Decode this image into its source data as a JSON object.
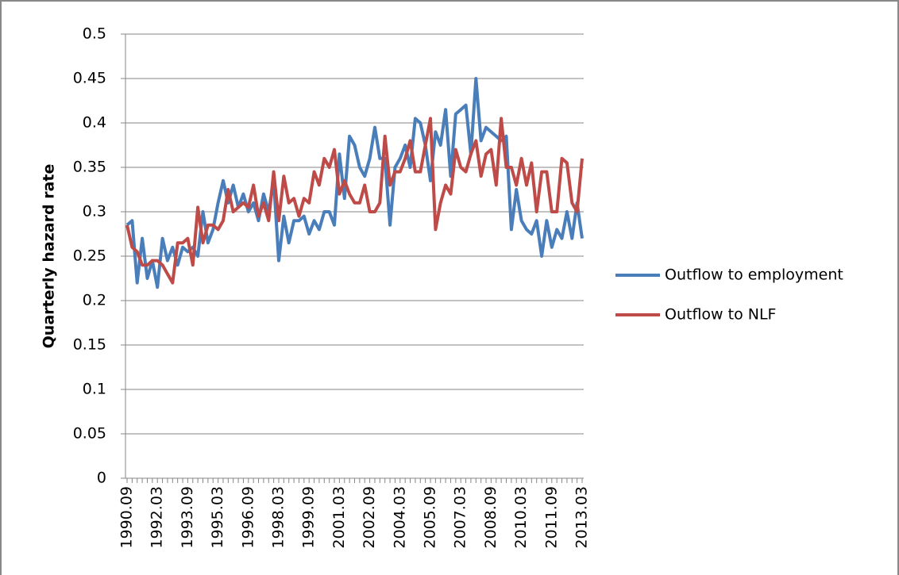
{
  "chart_data": {
    "type": "line",
    "y_label": "Quarterly hazard rate",
    "categories": [
      "1990.09",
      null,
      null,
      null,
      null,
      null,
      "1992.03",
      null,
      null,
      null,
      null,
      null,
      "1993.09",
      null,
      null,
      null,
      null,
      null,
      "1995.03",
      null,
      null,
      null,
      null,
      null,
      "1996.09",
      null,
      null,
      null,
      null,
      null,
      "1998.03",
      null,
      null,
      null,
      null,
      null,
      "1999.09",
      null,
      null,
      null,
      null,
      null,
      "2001.03",
      null,
      null,
      null,
      null,
      null,
      "2002.09",
      null,
      null,
      null,
      null,
      null,
      "2004.03",
      null,
      null,
      null,
      null,
      null,
      "2005.09",
      null,
      null,
      null,
      null,
      null,
      "2007.03",
      null,
      null,
      null,
      null,
      null,
      "2008.09",
      null,
      null,
      null,
      null,
      null,
      "2010.03",
      null,
      null,
      null,
      null,
      null,
      "2011.09",
      null,
      null,
      null,
      null,
      null,
      "2013.03"
    ],
    "series": [
      {
        "name": "Outflow to employment",
        "color": "#4a7ebb",
        "values": [
          0.285,
          0.29,
          0.22,
          0.27,
          0.225,
          0.245,
          0.215,
          0.27,
          0.245,
          0.26,
          0.24,
          0.26,
          0.255,
          0.26,
          0.25,
          0.3,
          0.265,
          0.28,
          0.31,
          0.335,
          0.31,
          0.33,
          0.305,
          0.32,
          0.3,
          0.31,
          0.29,
          0.32,
          0.3,
          0.335,
          0.245,
          0.295,
          0.265,
          0.29,
          0.29,
          0.295,
          0.275,
          0.29,
          0.28,
          0.3,
          0.3,
          0.285,
          0.365,
          0.315,
          0.385,
          0.375,
          0.35,
          0.34,
          0.36,
          0.395,
          0.36,
          0.36,
          0.285,
          0.35,
          0.36,
          0.375,
          0.35,
          0.405,
          0.4,
          0.375,
          0.335,
          0.39,
          0.375,
          0.415,
          0.34,
          0.41,
          0.415,
          0.42,
          0.365,
          0.45,
          0.38,
          0.395,
          0.39,
          0.385,
          0.38,
          0.385,
          0.28,
          0.325,
          0.29,
          0.28,
          0.275,
          0.29,
          0.25,
          0.29,
          0.26,
          0.28,
          0.27,
          0.3,
          0.27,
          0.31,
          0.27
        ]
      },
      {
        "name": "Outflow to NLF",
        "color": "#be4b48",
        "values": [
          0.285,
          0.26,
          0.255,
          0.24,
          0.24,
          0.245,
          0.245,
          0.24,
          0.23,
          0.22,
          0.265,
          0.265,
          0.27,
          0.24,
          0.305,
          0.265,
          0.285,
          0.285,
          0.28,
          0.29,
          0.325,
          0.3,
          0.305,
          0.31,
          0.305,
          0.33,
          0.295,
          0.31,
          0.29,
          0.345,
          0.29,
          0.34,
          0.31,
          0.315,
          0.295,
          0.315,
          0.31,
          0.345,
          0.33,
          0.36,
          0.35,
          0.37,
          0.32,
          0.335,
          0.32,
          0.31,
          0.31,
          0.33,
          0.3,
          0.3,
          0.31,
          0.385,
          0.33,
          0.345,
          0.345,
          0.36,
          0.38,
          0.345,
          0.345,
          0.375,
          0.405,
          0.28,
          0.31,
          0.33,
          0.32,
          0.37,
          0.35,
          0.345,
          0.365,
          0.38,
          0.34,
          0.365,
          0.37,
          0.33,
          0.405,
          0.35,
          0.35,
          0.33,
          0.36,
          0.33,
          0.355,
          0.3,
          0.345,
          0.345,
          0.3,
          0.3,
          0.36,
          0.355,
          0.31,
          0.3,
          0.36
        ]
      }
    ],
    "ylim": [
      0,
      0.5
    ],
    "yticks": [
      0,
      0.05,
      0.1,
      0.15,
      0.2,
      0.25,
      0.3,
      0.35,
      0.4,
      0.45,
      0.5
    ],
    "grid": true,
    "legend": "right"
  }
}
